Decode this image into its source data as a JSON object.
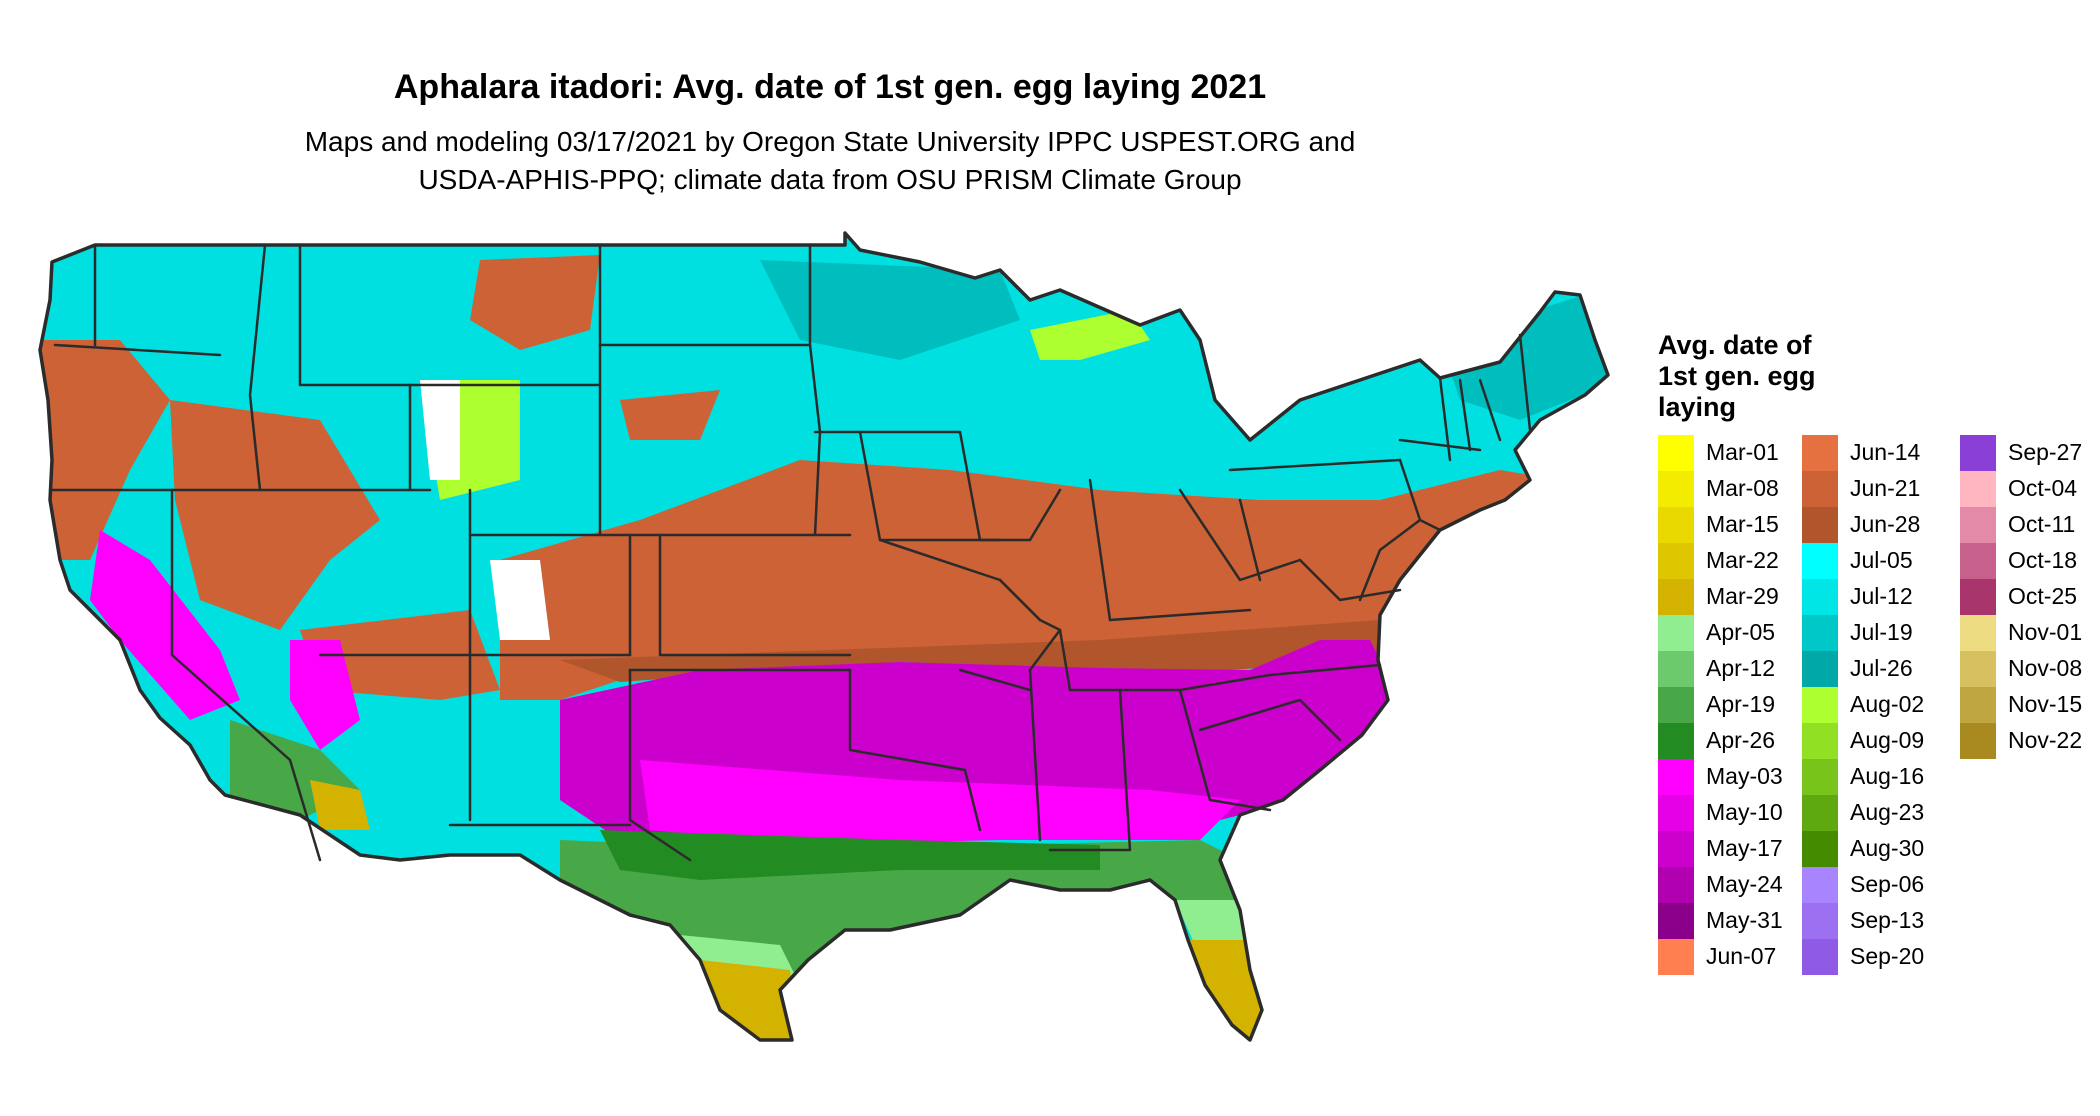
{
  "title": "Aphalara itadori: Avg. date of 1st gen. egg laying 2021",
  "subtitle_line1": "Maps and modeling 03/17/2021 by Oregon State University IPPC USPEST.ORG and",
  "subtitle_line2": "USDA-APHIS-PPQ; climate data from OSU PRISM Climate Group",
  "legend": {
    "title_lines": [
      "Avg. date of",
      "1st gen. egg",
      "laying"
    ],
    "columns": [
      [
        {
          "label": "Mar-01",
          "color": "#FFFF00"
        },
        {
          "label": "Mar-08",
          "color": "#F4EC00"
        },
        {
          "label": "Mar-15",
          "color": "#E9D900"
        },
        {
          "label": "Mar-22",
          "color": "#DEC600"
        },
        {
          "label": "Mar-29",
          "color": "#D3B300"
        },
        {
          "label": "Apr-05",
          "color": "#90EE90"
        },
        {
          "label": "Apr-12",
          "color": "#6CC96C"
        },
        {
          "label": "Apr-19",
          "color": "#48A848"
        },
        {
          "label": "Apr-26",
          "color": "#228B22"
        },
        {
          "label": "May-03",
          "color": "#FF00FF"
        },
        {
          "label": "May-10",
          "color": "#E600E6"
        },
        {
          "label": "May-17",
          "color": "#CC00CC"
        },
        {
          "label": "May-24",
          "color": "#B000B0"
        },
        {
          "label": "May-31",
          "color": "#8B008B"
        },
        {
          "label": "Jun-07",
          "color": "#FF7F50"
        }
      ],
      [
        {
          "label": "Jun-14",
          "color": "#E57040"
        },
        {
          "label": "Jun-21",
          "color": "#CC6236"
        },
        {
          "label": "Jun-28",
          "color": "#B0552C"
        },
        {
          "label": "Jul-05",
          "color": "#00FFFF"
        },
        {
          "label": "Jul-12",
          "color": "#00E5E5"
        },
        {
          "label": "Jul-19",
          "color": "#00C8C8"
        },
        {
          "label": "Jul-26",
          "color": "#00A8A8"
        },
        {
          "label": "Aug-02",
          "color": "#ADFF2F"
        },
        {
          "label": "Aug-09",
          "color": "#92E024"
        },
        {
          "label": "Aug-16",
          "color": "#78C41A"
        },
        {
          "label": "Aug-23",
          "color": "#5EA810"
        },
        {
          "label": "Aug-30",
          "color": "#458B00"
        },
        {
          "label": "Sep-06",
          "color": "#A984FF"
        },
        {
          "label": "Sep-13",
          "color": "#9C70F0"
        },
        {
          "label": "Sep-20",
          "color": "#8F5AE6"
        }
      ],
      [
        {
          "label": "Sep-27",
          "color": "#8A3FD6"
        },
        {
          "label": "Oct-04",
          "color": "#FFB6C1"
        },
        {
          "label": "Oct-11",
          "color": "#E38AA8"
        },
        {
          "label": "Oct-18",
          "color": "#C7608A"
        },
        {
          "label": "Oct-25",
          "color": "#A8356B"
        },
        {
          "label": "Nov-01",
          "color": "#EEDC82"
        },
        {
          "label": "Nov-08",
          "color": "#D6C060"
        },
        {
          "label": "Nov-15",
          "color": "#BFA640"
        },
        {
          "label": "Nov-22",
          "color": "#A88A20"
        }
      ]
    ]
  },
  "map": {
    "band_colors": {
      "north": "#00E0E0",
      "north_dark": "#00BEBE",
      "central": "#CC6236",
      "central_dark": "#B0552C",
      "south": "#CC00CC",
      "south_bright": "#FF00FF",
      "gulf": "#48A848",
      "gulf_dark": "#228B22",
      "coast": "#90EE90",
      "tip": "#D3B300",
      "alpine": "#ADFF2F",
      "snow": "#FFFFFF",
      "border": "#2B2B2B"
    }
  }
}
